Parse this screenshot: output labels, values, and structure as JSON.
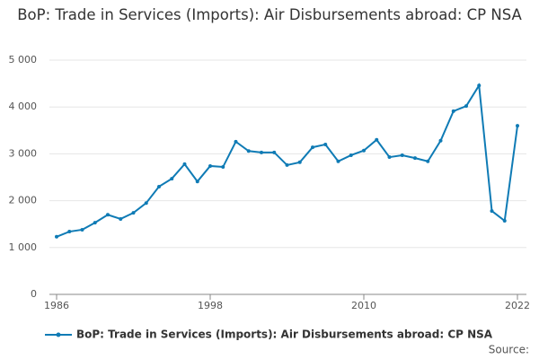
{
  "chart_data": {
    "type": "line",
    "title": "BoP: Trade in Services (Imports): Air Disbursements abroad: CP NSA",
    "x": [
      1986,
      1987,
      1988,
      1989,
      1990,
      1991,
      1992,
      1993,
      1994,
      1995,
      1996,
      1997,
      1998,
      1999,
      2000,
      2001,
      2002,
      2003,
      2004,
      2005,
      2006,
      2007,
      2008,
      2009,
      2010,
      2011,
      2012,
      2013,
      2014,
      2015,
      2016,
      2017,
      2018,
      2019,
      2020,
      2021,
      2022
    ],
    "series": [
      {
        "name": "BoP: Trade in Services (Imports): Air Disbursements abroad: CP NSA",
        "color": "#0f7bb5",
        "values": [
          1230,
          1340,
          1380,
          1530,
          1700,
          1610,
          1740,
          1950,
          2300,
          2470,
          2780,
          2410,
          2740,
          2720,
          3260,
          3060,
          3030,
          3030,
          2760,
          2820,
          3140,
          3200,
          2840,
          2970,
          3070,
          3300,
          2930,
          2970,
          2910,
          2840,
          3280,
          3910,
          4020,
          4460,
          1780,
          1570,
          3600
        ]
      }
    ],
    "xlim": [
      1986,
      2022
    ],
    "xticks": [
      1986,
      1998,
      2010,
      2022
    ],
    "ylim": [
      0,
      5000
    ],
    "yticks": [
      0,
      {
        "value": 1000,
        "label": "1 000"
      },
      {
        "value": 2000,
        "label": "2 000"
      },
      {
        "value": 3000,
        "label": "3 000"
      },
      {
        "value": 4000,
        "label": "4 000"
      },
      {
        "value": 5000,
        "label": "5 000"
      }
    ],
    "grid": true,
    "source": "Source:"
  }
}
